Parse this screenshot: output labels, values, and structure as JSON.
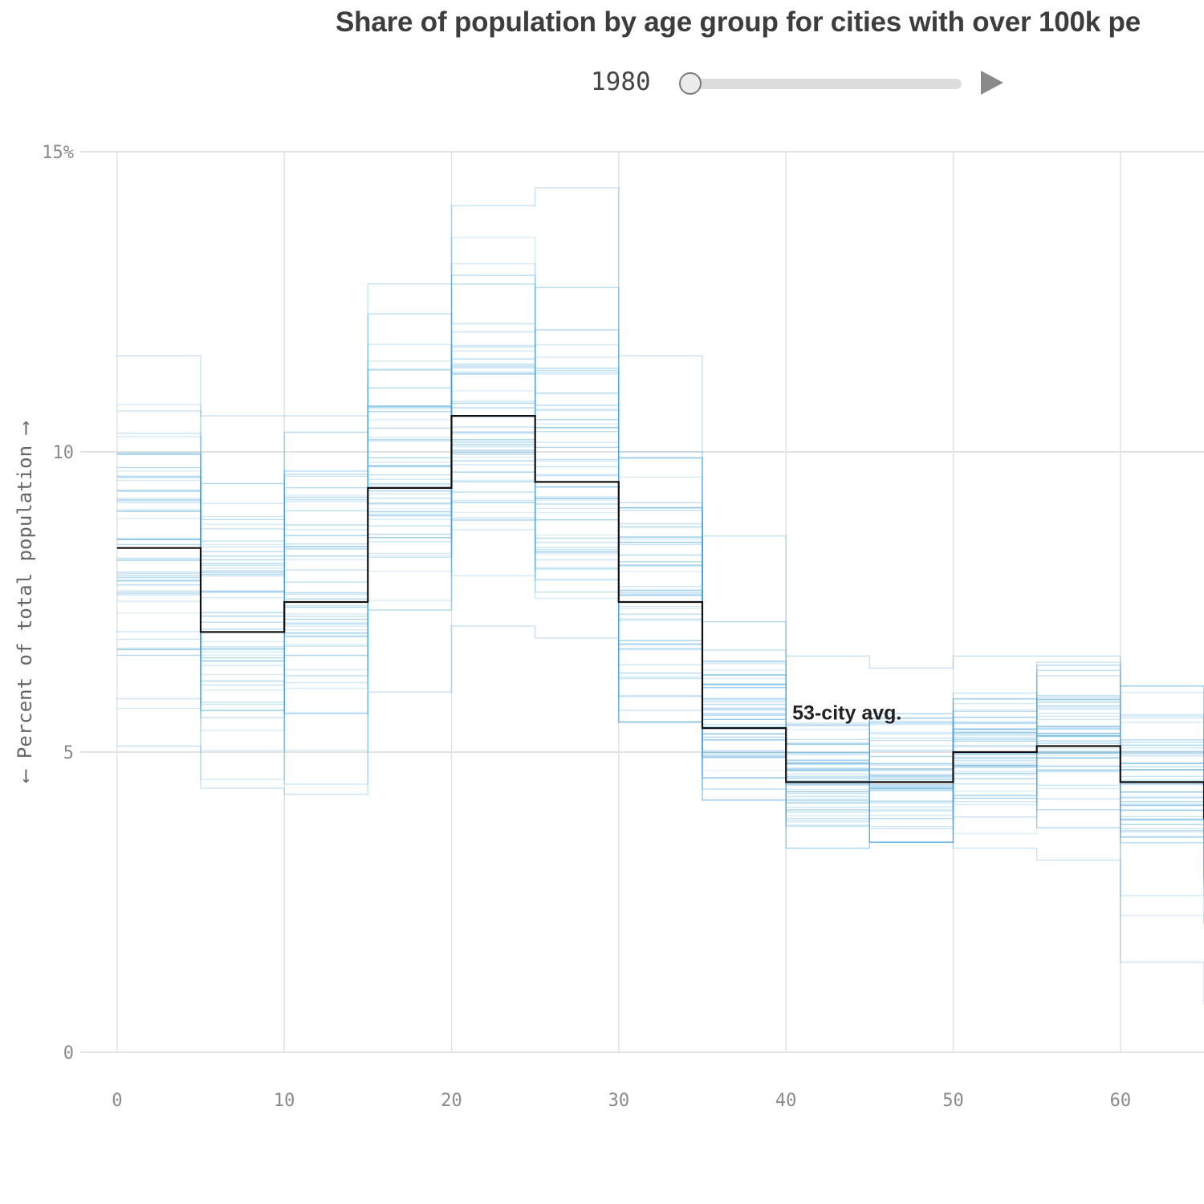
{
  "header": {
    "title": "Share of population by age group for cities with over 100k pe"
  },
  "slider": {
    "year": "1980",
    "min_year": 1980,
    "fraction": 0.0
  },
  "chart_data": {
    "type": "line",
    "subtype": "step",
    "title": "Share of population by age group for cities with over 100k pe",
    "ylabel": "⟵ Percent of total population ⟶",
    "xlabel": "",
    "xlim": [
      -2.2,
      65
    ],
    "ylim": [
      0,
      15
    ],
    "x_ticks": [
      0,
      10,
      20,
      30,
      40,
      50,
      60
    ],
    "y_ticks": [
      0,
      5,
      10,
      15
    ],
    "y_tick_labels": [
      "0",
      "5",
      "10",
      "15%"
    ],
    "bin_starts": [
      0,
      5,
      10,
      15,
      20,
      25,
      30,
      35,
      40,
      45,
      50,
      55,
      60,
      65
    ],
    "average": {
      "label": "53-city avg.",
      "values": [
        8.4,
        7.0,
        7.5,
        9.4,
        10.6,
        9.5,
        7.5,
        5.4,
        4.5,
        4.5,
        5.0,
        5.1,
        4.5,
        3.9
      ],
      "color": "#111111"
    },
    "cities_series": {
      "count": 53,
      "color": "#4ba5dc",
      "min": [
        5.1,
        4.4,
        4.3,
        6.0,
        7.1,
        6.9,
        5.5,
        4.2,
        3.4,
        3.5,
        3.4,
        3.2,
        1.5,
        0.8
      ],
      "max": [
        11.6,
        10.6,
        10.6,
        12.8,
        14.1,
        14.4,
        11.6,
        8.6,
        6.6,
        6.4,
        6.6,
        6.6,
        6.1,
        5.4
      ],
      "mean": [
        8.4,
        7.0,
        7.5,
        9.4,
        10.6,
        9.5,
        7.5,
        5.4,
        4.5,
        4.5,
        5.0,
        5.1,
        4.5,
        3.9
      ],
      "spread": [
        1.3,
        1.4,
        1.4,
        1.3,
        1.4,
        1.4,
        1.3,
        0.8,
        0.6,
        0.6,
        0.6,
        0.7,
        0.9,
        1.0
      ]
    },
    "grid": true,
    "legend": "none"
  }
}
